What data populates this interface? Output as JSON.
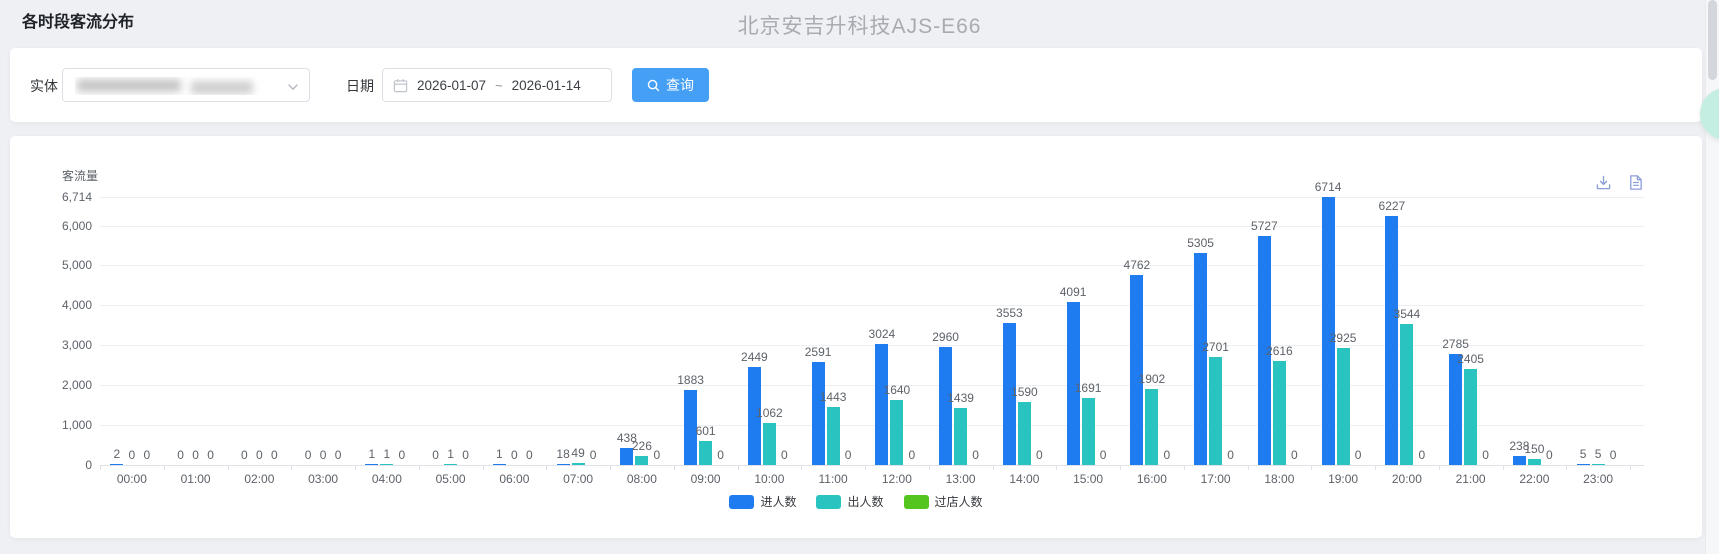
{
  "page": {
    "title": "各时段客流分布",
    "center_title": "北京安吉升科技AJS-E66"
  },
  "filters": {
    "entity_label": "实体",
    "entity_value": "",
    "date_label": "日期",
    "date_start": "2026-01-07",
    "date_separator": "~",
    "date_end": "2026-01-14",
    "query_button": "查询"
  },
  "icons": {
    "query": "search-icon",
    "entity": "chevron-down-icon",
    "date": "calendar-icon",
    "tools": [
      "download-icon",
      "document-icon"
    ]
  },
  "chart_data": {
    "type": "bar",
    "title": "",
    "ylabel": "客流量",
    "xlabel": "",
    "grid": true,
    "legend_position": "bottom",
    "ymax": 6714,
    "ylim": [
      0,
      6714
    ],
    "yticks": [
      0,
      1000,
      2000,
      3000,
      4000,
      5000,
      6000,
      6714
    ],
    "ytick_labels": [
      "0",
      "1,000",
      "2,000",
      "3,000",
      "4,000",
      "5,000",
      "6,000",
      "6,714"
    ],
    "categories": [
      "00:00",
      "01:00",
      "02:00",
      "03:00",
      "04:00",
      "05:00",
      "06:00",
      "07:00",
      "08:00",
      "09:00",
      "10:00",
      "11:00",
      "12:00",
      "13:00",
      "14:00",
      "15:00",
      "16:00",
      "17:00",
      "18:00",
      "19:00",
      "20:00",
      "21:00",
      "22:00",
      "23:00"
    ],
    "series": [
      {
        "name": "进人数",
        "color": "#1f7cf0",
        "values": [
          2,
          0,
          0,
          0,
          1,
          0,
          1,
          18,
          438,
          1883,
          2449,
          2591,
          3024,
          2960,
          3553,
          4091,
          4762,
          5305,
          5727,
          6714,
          6227,
          2785,
          238,
          5
        ]
      },
      {
        "name": "出人数",
        "color": "#29c4c0",
        "values": [
          0,
          0,
          0,
          0,
          1,
          1,
          0,
          49,
          226,
          601,
          1062,
          1443,
          1640,
          1439,
          1590,
          1691,
          1902,
          2701,
          2616,
          2925,
          3544,
          2405,
          150,
          5
        ]
      },
      {
        "name": "过店人数",
        "color": "#54c41f",
        "values": [
          0,
          0,
          0,
          0,
          0,
          0,
          0,
          0,
          0,
          0,
          0,
          0,
          0,
          0,
          0,
          0,
          0,
          0,
          0,
          0,
          0,
          0,
          0,
          0
        ]
      }
    ]
  }
}
